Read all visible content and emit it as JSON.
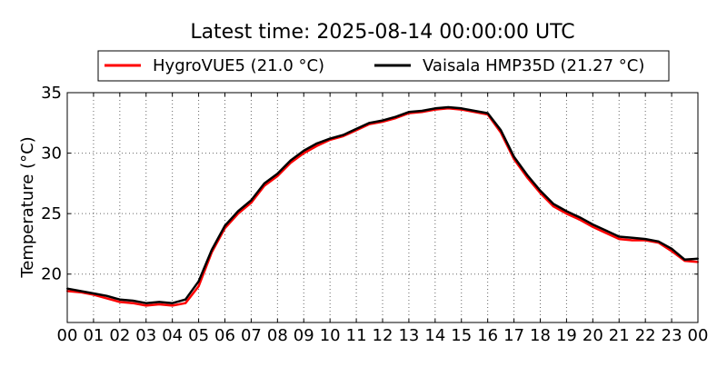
{
  "chart_data": {
    "type": "line",
    "title": "Latest time: 2025-08-14 00:00:00 UTC",
    "xlabel": "",
    "ylabel": "Temperature (°C)",
    "xlim": [
      0,
      24
    ],
    "ylim": [
      16,
      35
    ],
    "x_ticks": [
      0,
      1,
      2,
      3,
      4,
      5,
      6,
      7,
      8,
      9,
      10,
      11,
      12,
      13,
      14,
      15,
      16,
      17,
      18,
      19,
      20,
      21,
      22,
      23,
      24
    ],
    "x_tick_labels": [
      "00",
      "01",
      "02",
      "03",
      "04",
      "05",
      "06",
      "07",
      "08",
      "09",
      "10",
      "11",
      "12",
      "13",
      "14",
      "15",
      "16",
      "17",
      "18",
      "19",
      "20",
      "21",
      "22",
      "23",
      "00"
    ],
    "y_ticks": [
      20,
      25,
      30,
      35
    ],
    "y_tick_labels": [
      "20",
      "25",
      "30",
      "35"
    ],
    "grid": true,
    "legend_position": "top-center",
    "series": [
      {
        "name": "HygroVUE5 (21.0 °C)",
        "color": "#ff0000",
        "x": [
          0,
          0.5,
          1,
          1.5,
          2,
          2.5,
          3,
          3.5,
          4,
          4.5,
          5,
          5.5,
          6,
          6.5,
          7,
          7.5,
          8,
          8.5,
          9,
          9.5,
          10,
          10.5,
          11,
          11.5,
          12,
          12.5,
          13,
          13.5,
          14,
          14.5,
          15,
          15.5,
          16,
          16.5,
          17,
          17.5,
          18,
          18.5,
          19,
          19.5,
          20,
          20.5,
          21,
          21.5,
          22,
          22.5,
          23,
          23.5,
          24
        ],
        "values": [
          18.6,
          18.5,
          18.3,
          18.0,
          17.7,
          17.6,
          17.4,
          17.5,
          17.4,
          17.6,
          19.0,
          21.8,
          23.8,
          25.0,
          25.9,
          27.3,
          28.1,
          29.2,
          30.0,
          30.6,
          31.1,
          31.4,
          31.9,
          32.4,
          32.6,
          32.9,
          33.3,
          33.4,
          33.6,
          33.7,
          33.6,
          33.4,
          33.2,
          31.7,
          29.5,
          28.0,
          26.7,
          25.6,
          25.0,
          24.5,
          23.9,
          23.4,
          22.9,
          22.8,
          22.8,
          22.6,
          21.9,
          21.1,
          21.0
        ]
      },
      {
        "name": "Vaisala HMP35D (21.27 °C)",
        "color": "#000000",
        "x": [
          0,
          0.5,
          1,
          1.5,
          2,
          2.5,
          3,
          3.5,
          4,
          4.5,
          5,
          5.5,
          6,
          6.5,
          7,
          7.5,
          8,
          8.5,
          9,
          9.5,
          10,
          10.5,
          11,
          11.5,
          12,
          12.5,
          13,
          13.5,
          14,
          14.5,
          15,
          15.5,
          16,
          16.5,
          17,
          17.5,
          18,
          18.5,
          19,
          19.5,
          20,
          20.5,
          21,
          21.5,
          22,
          22.5,
          23,
          23.5,
          24
        ],
        "values": [
          18.8,
          18.6,
          18.4,
          18.2,
          17.9,
          17.8,
          17.6,
          17.7,
          17.6,
          17.9,
          19.4,
          22.0,
          24.0,
          25.2,
          26.1,
          27.5,
          28.3,
          29.4,
          30.2,
          30.8,
          31.2,
          31.5,
          32.0,
          32.5,
          32.7,
          33.0,
          33.4,
          33.5,
          33.7,
          33.8,
          33.7,
          33.5,
          33.3,
          31.9,
          29.7,
          28.2,
          26.9,
          25.8,
          25.2,
          24.7,
          24.1,
          23.6,
          23.1,
          23.0,
          22.9,
          22.7,
          22.1,
          21.2,
          21.27
        ]
      }
    ]
  }
}
